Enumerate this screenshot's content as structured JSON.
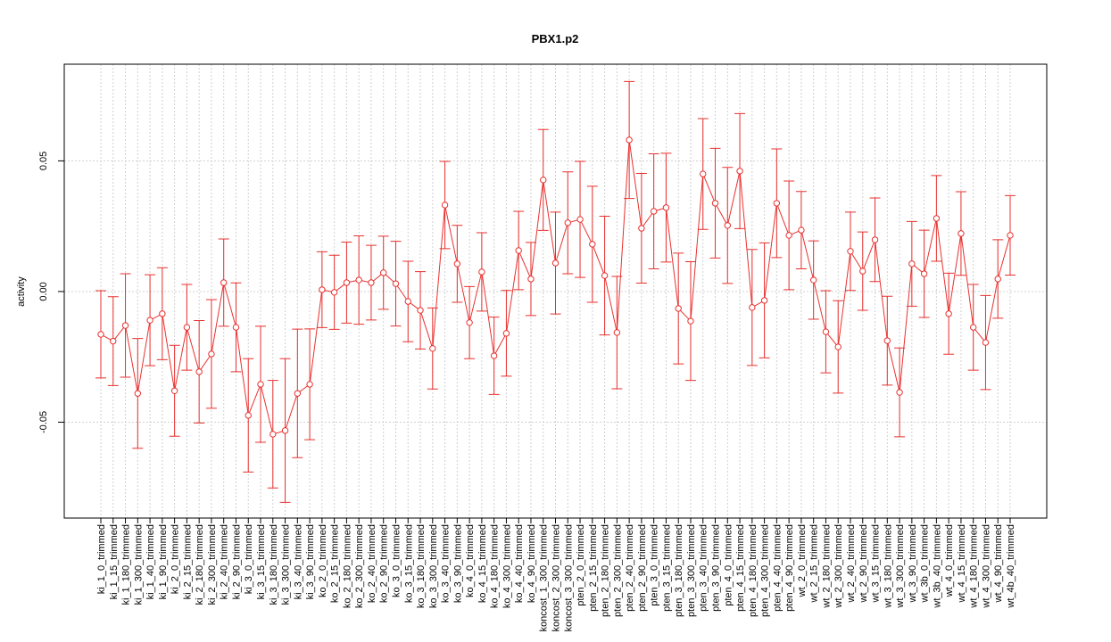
{
  "chart_data": {
    "type": "line",
    "title": "PBX1.p2",
    "y_label": "activity",
    "categories": [
      "ki_1_0_trimmed",
      "ki_1_15_trimmed",
      "ki_1_180_trimmed",
      "ki_1_300_trimmed",
      "ki_1_40_trimmed",
      "ki_1_90_trimmed",
      "ki_2_0_trimmed",
      "ki_2_15_trimmed",
      "ki_2_180_trimmed",
      "ki_2_300_trimmed",
      "ki_2_40_trimmed",
      "ki_2_90_trimmed",
      "ki_3_0_trimmed",
      "ki_3_15_trimmed",
      "ki_3_180_trimmed",
      "ki_3_300_trimmed",
      "ki_3_40_trimmed",
      "ki_3_90_trimmed",
      "ko_2_0_trimmed",
      "ko_2_15_trimmed",
      "ko_2_180_trimmed",
      "ko_2_300_trimmed",
      "ko_2_40_trimmed",
      "ko_2_90_trimmed",
      "ko_3_0_trimmed",
      "ko_3_15_trimmed",
      "ko_3_180_trimmed",
      "ko_3_300_trimmed",
      "ko_3_40_trimmed",
      "ko_3_90_trimmed",
      "ko_4_0_trimmed",
      "ko_4_15_trimmed",
      "ko_4_180_trimmed",
      "ko_4_300_trimmed",
      "ko_4_40_trimmed",
      "ko_4_90_trimmed",
      "koncost_1_300_trimmed",
      "koncost_2_300_trimmed",
      "koncost_3_300_trimmed",
      "pten_2_0_trimmed",
      "pten_2_15_trimmed",
      "pten_2_180_trimmed",
      "pten_2_300_trimmed",
      "pten_2_40_trimmed",
      "pten_2_90_trimmed",
      "pten_3_0_trimmed",
      "pten_3_15_trimmed",
      "pten_3_180_trimmed",
      "pten_3_300_trimmed",
      "pten_3_40_trimmed",
      "pten_3_90_trimmed",
      "pten_4_0_trimmed",
      "pten_4_15_trimmed",
      "pten_4_180_trimmed",
      "pten_4_300_trimmed",
      "pten_4_40_trimmed",
      "pten_4_90_trimmed",
      "wt_2_0_trimmed",
      "wt_2_15_trimmed",
      "wt_2_180_trimmed",
      "wt_2_300_trimmed",
      "wt_2_40_trimmed",
      "wt_2_90_trimmed",
      "wt_3_15_trimmed",
      "wt_3_180_trimmed",
      "wt_3_300_trimmed",
      "wt_3_90_trimmed",
      "wt_3b_0_trimmed",
      "wt_3b_40_trimmed",
      "wt_4_0_trimmed",
      "wt_4_15_trimmed",
      "wt_4_180_trimmed",
      "wt_4_300_trimmed",
      "wt_4_90_trimmed",
      "wt_4b_40_trimmed"
    ],
    "values": [
      -0.0164,
      -0.019,
      -0.013,
      -0.039,
      -0.011,
      -0.0085,
      -0.038,
      -0.0137,
      -0.0307,
      -0.0239,
      0.0034,
      -0.0137,
      -0.0474,
      -0.0355,
      -0.0546,
      -0.0532,
      -0.039,
      -0.0355,
      0.0007,
      -0.0003,
      0.0034,
      0.0044,
      0.0034,
      0.0072,
      0.003,
      -0.0038,
      -0.0072,
      -0.0218,
      0.0331,
      0.0106,
      -0.0119,
      0.0075,
      -0.0246,
      -0.016,
      0.0157,
      0.0048,
      0.0427,
      0.0109,
      0.0263,
      0.0276,
      0.0181,
      0.0061,
      -0.0157,
      0.058,
      0.0242,
      0.0307,
      0.0321,
      -0.0065,
      -0.0113,
      0.045,
      0.0338,
      0.0253,
      0.0461,
      -0.0061,
      -0.0034,
      0.0338,
      0.0215,
      0.0235,
      0.0044,
      -0.0154,
      -0.0212,
      0.0154,
      0.0078,
      0.0198,
      -0.0188,
      -0.0386,
      0.0106,
      0.0068,
      0.028,
      -0.0085,
      0.0222,
      -0.0137,
      -0.0195,
      0.0048,
      0.0215
    ],
    "errors": [
      0.0167,
      0.017,
      0.0198,
      0.021,
      0.0174,
      0.0176,
      0.0174,
      0.0164,
      0.0196,
      0.0208,
      0.0167,
      0.017,
      0.0217,
      0.0222,
      0.0206,
      0.0275,
      0.0246,
      0.0212,
      0.0145,
      0.0142,
      0.0155,
      0.0169,
      0.0143,
      0.014,
      0.0162,
      0.0154,
      0.0148,
      0.0155,
      0.0167,
      0.0147,
      0.0138,
      0.015,
      0.0148,
      0.0164,
      0.015,
      0.014,
      0.0193,
      0.0195,
      0.0195,
      0.0222,
      0.0222,
      0.0227,
      0.0215,
      0.0224,
      0.021,
      0.022,
      0.0208,
      0.0212,
      0.0227,
      0.0212,
      0.021,
      0.0222,
      0.022,
      0.0222,
      0.022,
      0.0208,
      0.0208,
      0.0148,
      0.015,
      0.0157,
      0.0177,
      0.015,
      0.015,
      0.016,
      0.017,
      0.017,
      0.0162,
      0.0167,
      0.0164,
      0.0155,
      0.016,
      0.0164,
      0.018,
      0.015,
      0.0152
    ],
    "color": "#e8312f",
    "ylim": [
      -0.0867,
      0.087
    ],
    "yticks": [
      -0.05,
      {
        "value": 0,
        "label": "0.00"
      },
      0.05
    ],
    "grid": true
  }
}
